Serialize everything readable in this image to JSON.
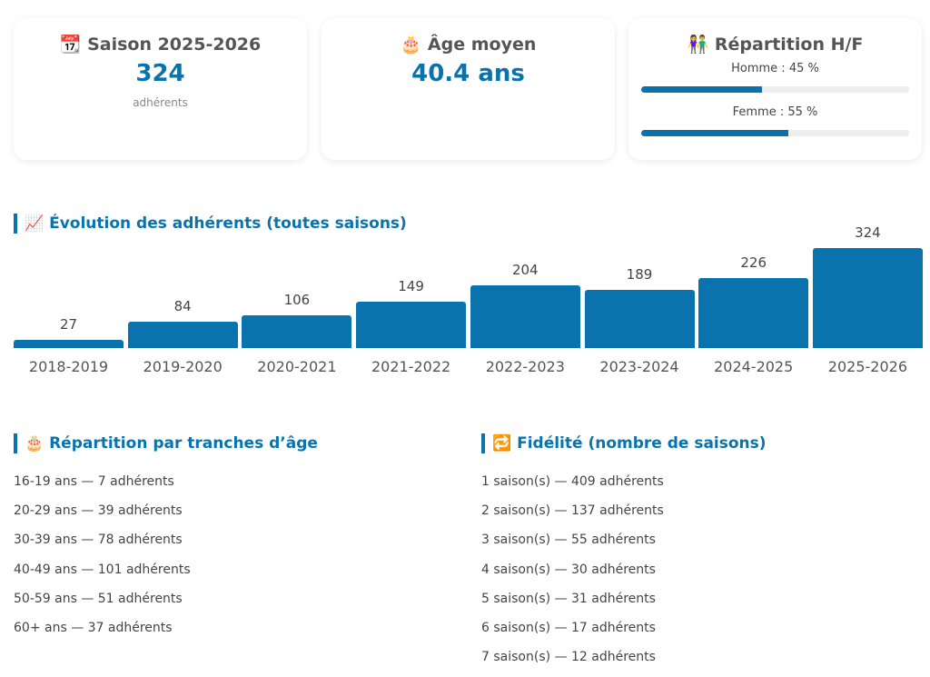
{
  "cards": {
    "season": {
      "icon": "📆",
      "title": "Saison 2025-2026",
      "value": "324",
      "sub": "adhérents"
    },
    "age": {
      "icon": "🎂",
      "title": "Âge moyen",
      "value": "40.4 ans"
    },
    "gender": {
      "icon": "👫",
      "title": "Répartition H/F",
      "male_label": "Homme : 45 %",
      "male_pct": 45,
      "female_label": "Femme : 55 %",
      "female_pct": 55
    }
  },
  "evolution": {
    "title": "📈 Évolution des adhérents (toutes saisons)"
  },
  "chart_data": {
    "type": "bar",
    "title": "Évolution des adhérents (toutes saisons)",
    "categories": [
      "2018-2019",
      "2019-2020",
      "2020-2021",
      "2021-2022",
      "2022-2023",
      "2023-2024",
      "2024-2025",
      "2025-2026"
    ],
    "values": [
      27,
      84,
      106,
      149,
      204,
      189,
      226,
      324
    ],
    "values_text": [
      "27",
      "84",
      "106",
      "149",
      "204",
      "189",
      "226",
      "324"
    ],
    "ylim": [
      0,
      324
    ]
  },
  "ages": {
    "title": "🎂 Répartition par tranches d’âge",
    "items": [
      "16-19 ans — 7 adhérents",
      "20-29 ans — 39 adhérents",
      "30-39 ans — 78 adhérents",
      "40-49 ans — 101 adhérents",
      "50-59 ans — 51 adhérents",
      "60+ ans — 37 adhérents"
    ]
  },
  "loyalty": {
    "title": "🔁 Fidélité (nombre de saisons)",
    "items": [
      "1 saison(s) — 409 adhérents",
      "2 saison(s) — 137 adhérents",
      "3 saison(s) — 55 adhérents",
      "4 saison(s) — 30 adhérents",
      "5 saison(s) — 31 adhérents",
      "6 saison(s) — 17 adhérents",
      "7 saison(s) — 12 adhérents"
    ]
  }
}
